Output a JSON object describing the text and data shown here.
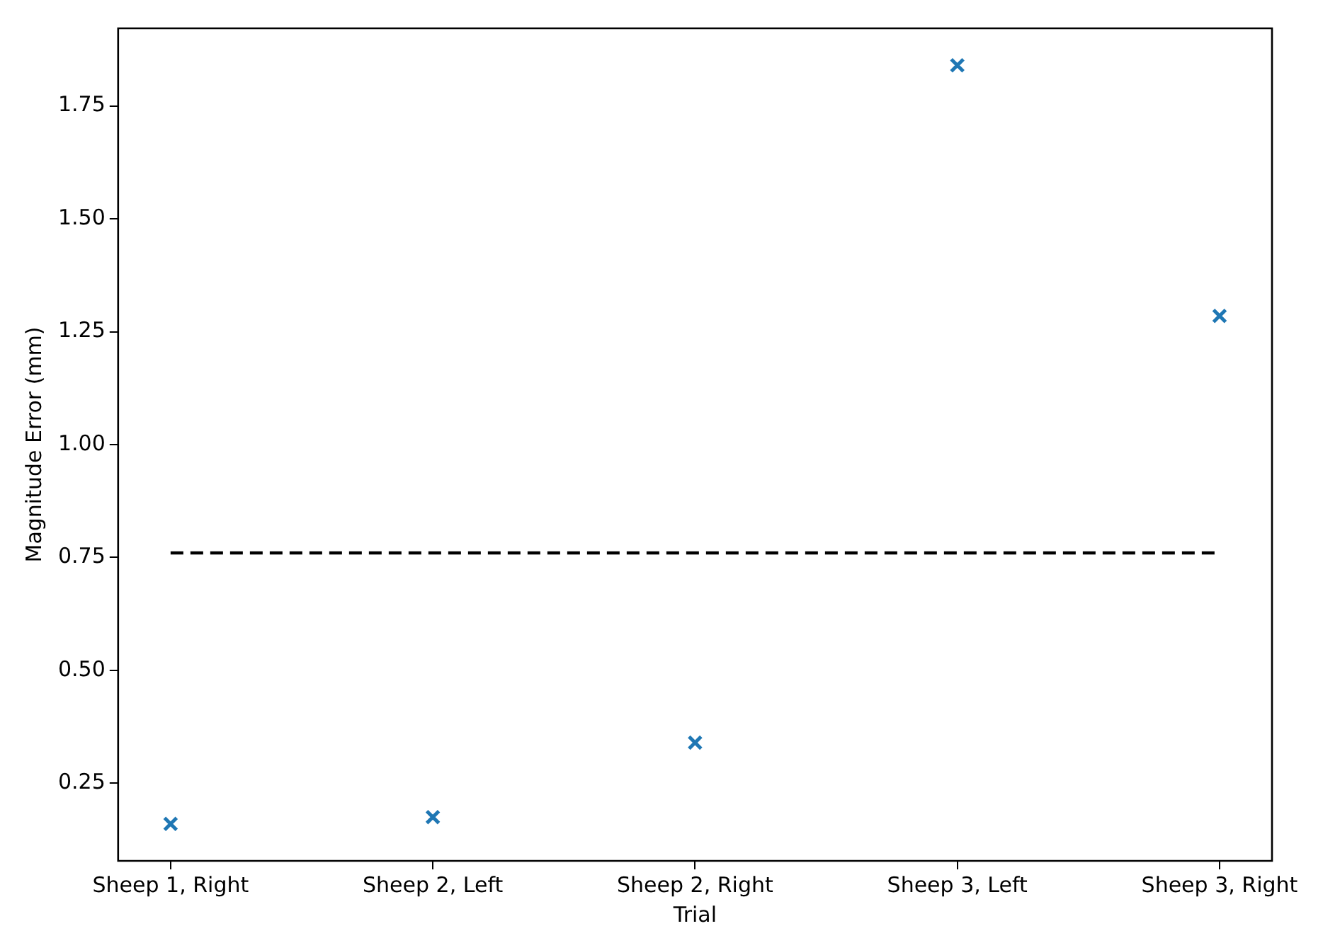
{
  "chart_data": {
    "type": "scatter",
    "xlabel": "Trial",
    "ylabel": "Magnitude Error (mm)",
    "categories": [
      "Sheep 1, Right",
      "Sheep 2, Left",
      "Sheep 2, Right",
      "Sheep 3, Left",
      "Sheep 3, Right"
    ],
    "series": [
      {
        "type": "scatter",
        "color": "#1f77b4",
        "marker": "cross",
        "values": [
          0.16,
          0.175,
          0.34,
          1.84,
          1.285
        ]
      },
      {
        "type": "line",
        "color": "#000000",
        "line_style": "dashed",
        "marker": "none",
        "values": [
          0.76,
          0.76,
          0.76,
          0.76,
          0.76
        ]
      }
    ],
    "ylim": [
      0.078,
      1.922
    ],
    "yticks": [
      {
        "value": 0.25,
        "label": "0.25"
      },
      {
        "value": 0.5,
        "label": "0.50"
      },
      {
        "value": 0.75,
        "label": "0.75"
      },
      {
        "value": 1.0,
        "label": "1.00"
      },
      {
        "value": 1.25,
        "label": "1.25"
      },
      {
        "value": 1.5,
        "label": "1.50"
      },
      {
        "value": 1.75,
        "label": "1.75"
      }
    ],
    "grid": false,
    "legend": false
  }
}
